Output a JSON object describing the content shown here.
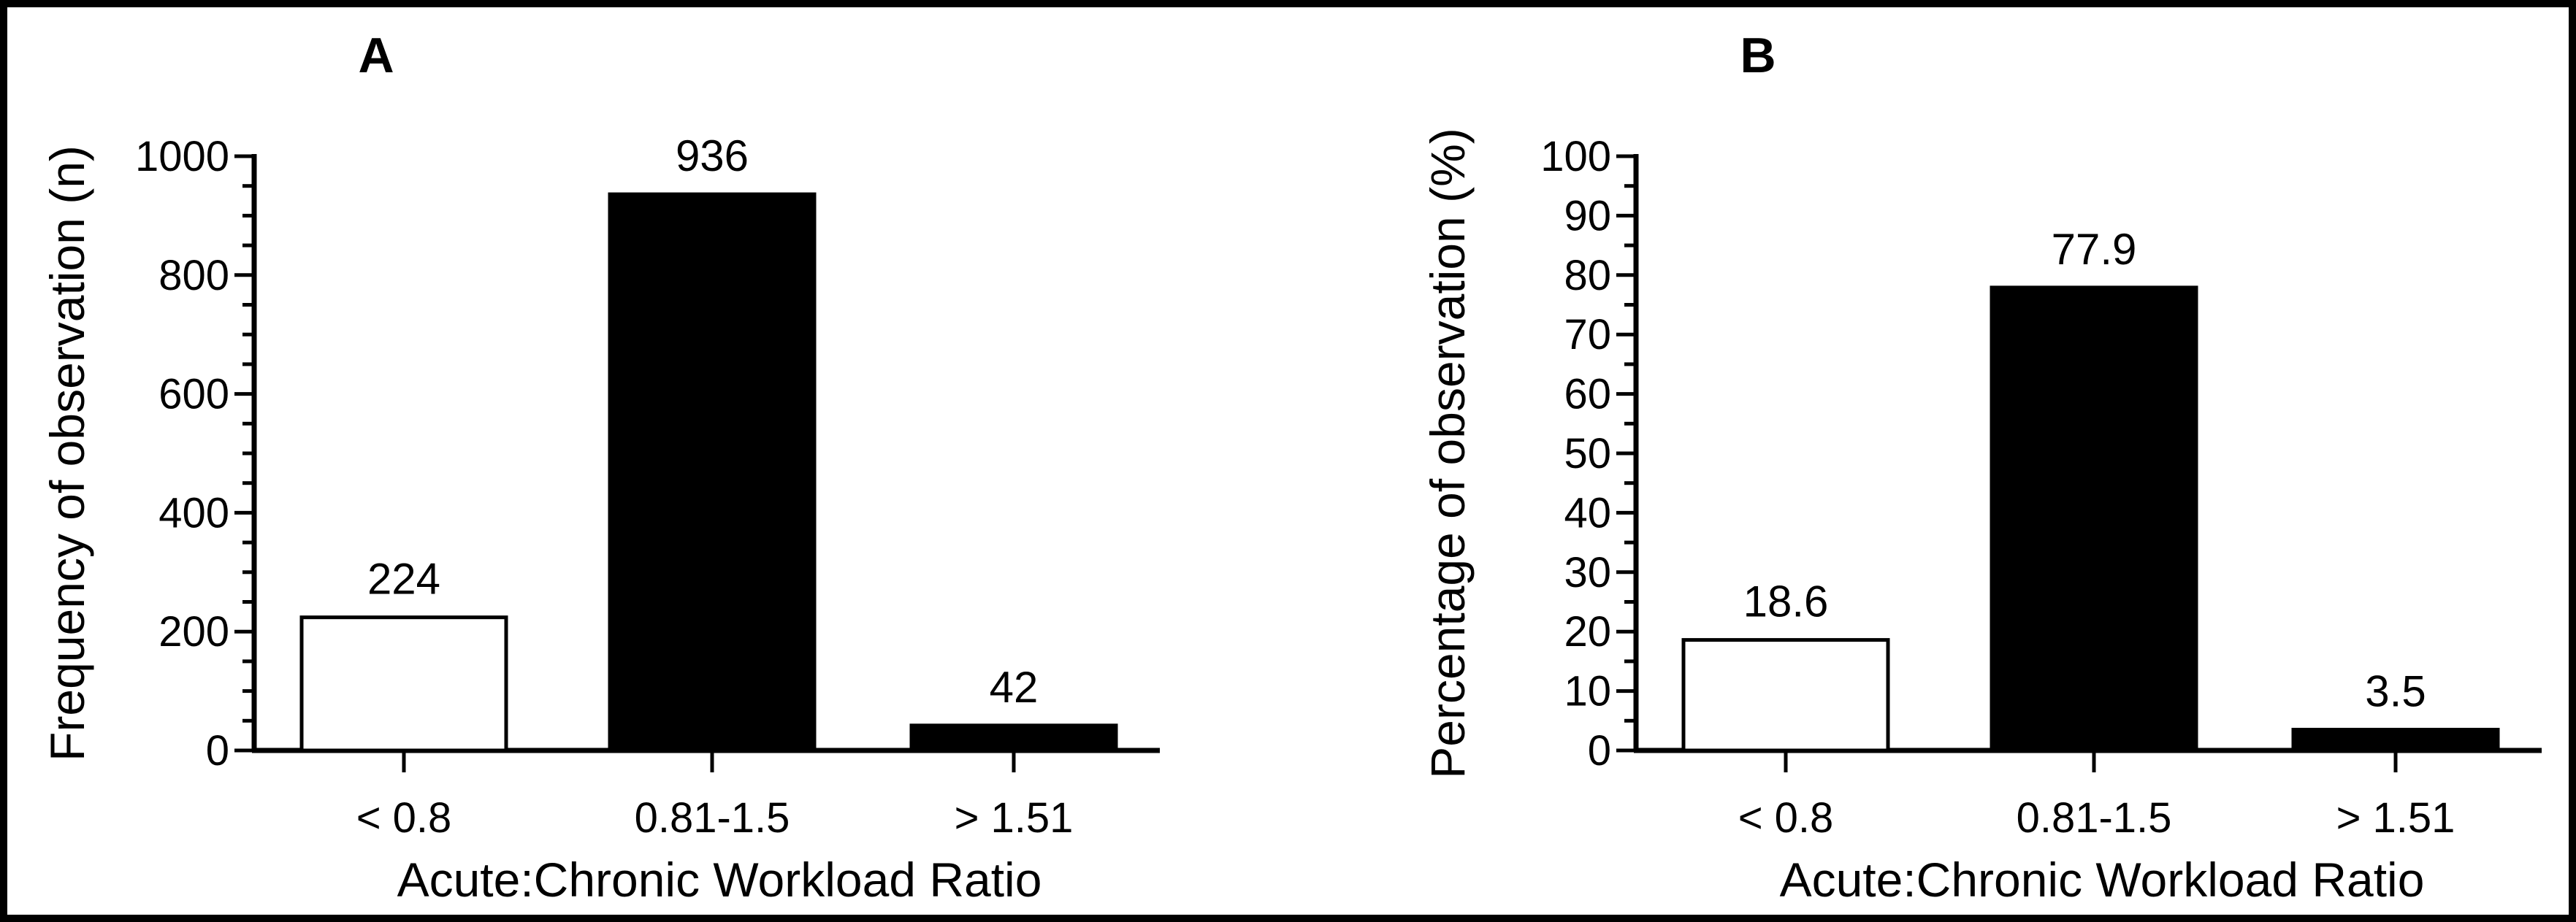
{
  "colors": {
    "ink": "#000000",
    "background": "#ffffff",
    "bar_open_fill": "#ffffff",
    "bar_solid_fill": "#000000"
  },
  "chart_data": [
    {
      "type": "bar",
      "panel_label": "A",
      "title": "",
      "xlabel": "Acute:Chronic Workload Ratio",
      "ylabel": "Frequency of observation (n)",
      "categories": [
        "< 0.8",
        "0.81-1.5",
        "> 1.51"
      ],
      "values": [
        224,
        936,
        42
      ],
      "value_labels": [
        "224",
        "936",
        "42"
      ],
      "bar_colors": [
        "#ffffff",
        "#000000",
        "#000000"
      ],
      "ylim": [
        0,
        1000
      ],
      "ytick_major": 200,
      "ytick_minor": 50,
      "ytick_labels": [
        "0",
        "200",
        "400",
        "600",
        "800",
        "1000"
      ],
      "grid": false,
      "legend": false
    },
    {
      "type": "bar",
      "panel_label": "B",
      "title": "",
      "xlabel": "Acute:Chronic Workload Ratio",
      "ylabel": "Percentage of observation (%)",
      "categories": [
        "< 0.8",
        "0.81-1.5",
        "> 1.51"
      ],
      "values": [
        18.6,
        77.9,
        3.5
      ],
      "value_labels": [
        "18.6",
        "77.9",
        "3.5"
      ],
      "bar_colors": [
        "#ffffff",
        "#000000",
        "#000000"
      ],
      "ylim": [
        0,
        100
      ],
      "ytick_major": 10,
      "ytick_minor": 5,
      "ytick_labels": [
        "0",
        "10",
        "20",
        "30",
        "40",
        "50",
        "60",
        "70",
        "80",
        "90",
        "100"
      ],
      "grid": false,
      "legend": false
    }
  ]
}
